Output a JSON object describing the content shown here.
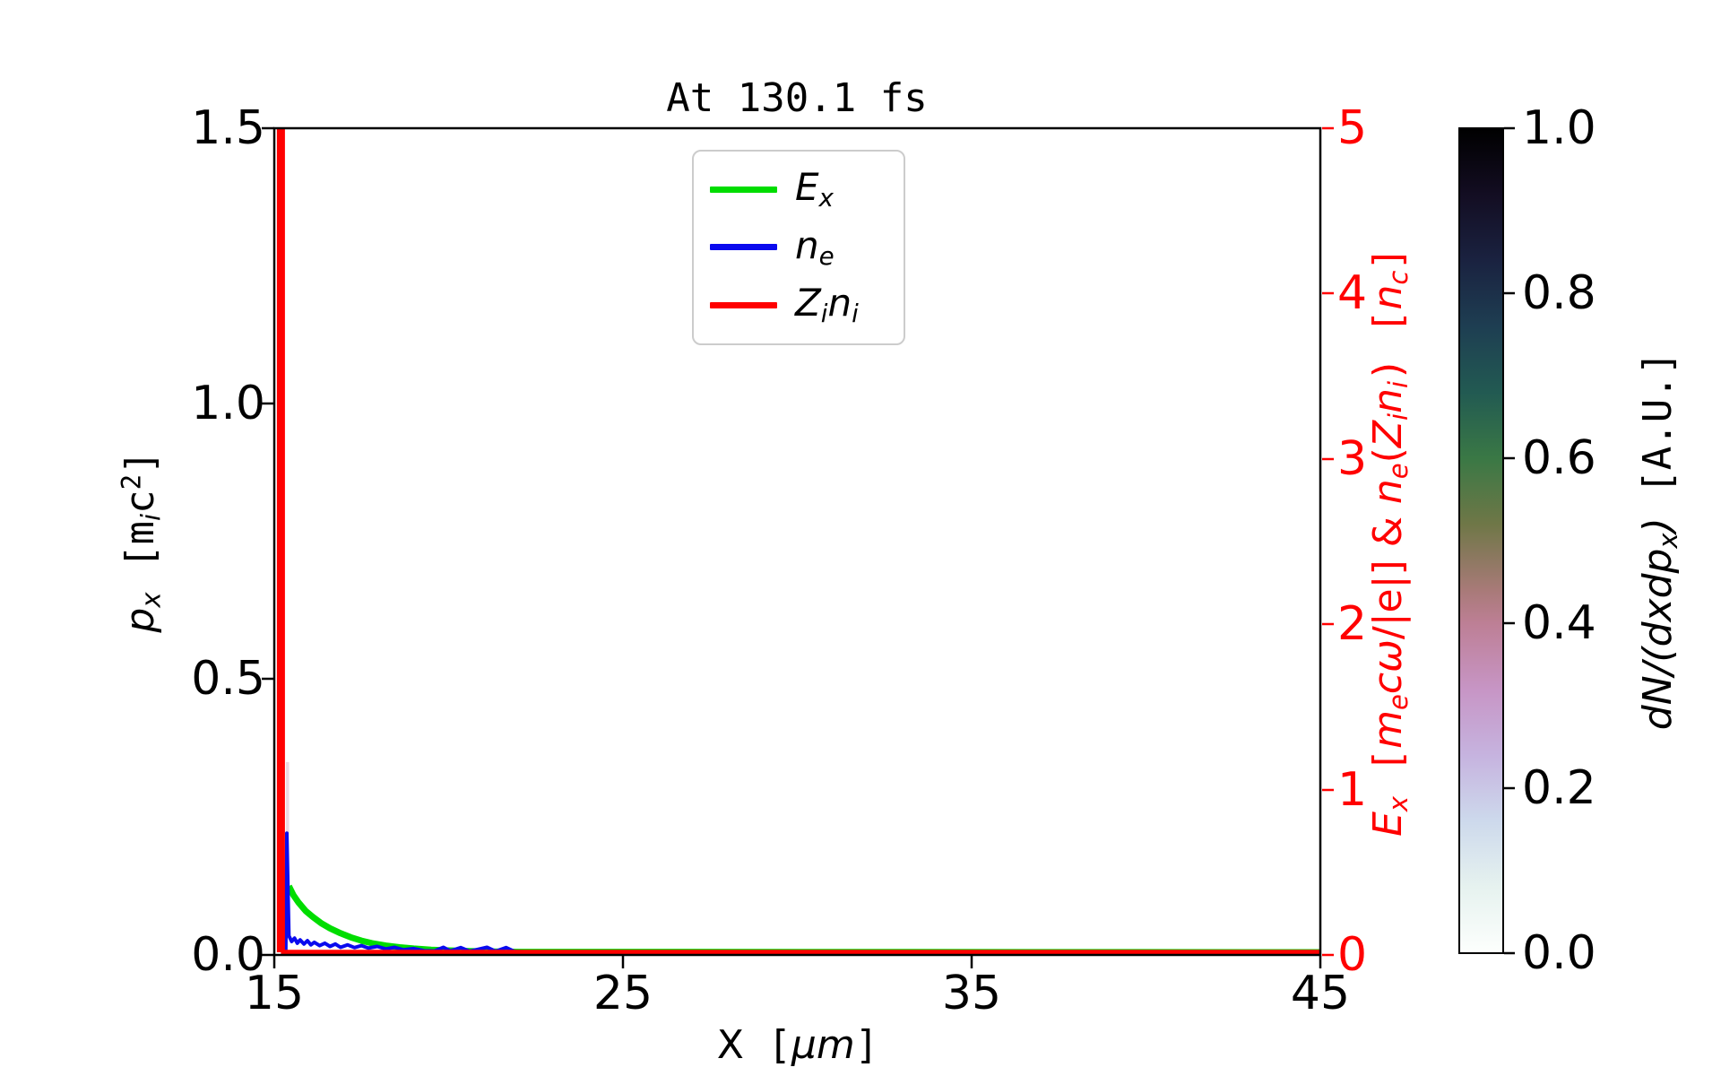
{
  "figure": {
    "title": "At 130.1 fs"
  },
  "axes": {
    "x": {
      "label_x": "X",
      "label_open": " [",
      "label_unit": "μm",
      "label_close": "]",
      "ticks": [
        "15",
        "25",
        "35",
        "45"
      ]
    },
    "y_left": {
      "label_base": "p",
      "label_base_sub": "x",
      "label_open": " [m",
      "label_unit_sub": "i",
      "label_unit_c": "c",
      "label_unit_sup": "2",
      "label_close": "]",
      "ticks": [
        "1.5",
        "1.0",
        "0.5",
        "0.0"
      ]
    },
    "y_right": {
      "color": "#ff0000",
      "ticks": [
        "5",
        "4",
        "3",
        "2",
        "1",
        "0"
      ],
      "label": {
        "s1": "E",
        "s2": "x",
        "s3": " [",
        "s4": "m",
        "s5": "e",
        "s6": "c",
        "s7": "ω",
        "s8": "/|e|] & ",
        "s9": "n",
        "s10": "e",
        "s11": "(",
        "s12": "Z",
        "s13": "i",
        "s14": "n",
        "s15": "i",
        "s16": ") [",
        "s17": "n",
        "s18": "c",
        "s19": "]"
      }
    }
  },
  "legend": {
    "items": [
      {
        "base": "E",
        "sub": "x",
        "base2": "",
        "sub2": "",
        "color": "#00dd00"
      },
      {
        "base": "n",
        "sub": "e",
        "base2": "",
        "sub2": "",
        "color": "#0a0aee"
      },
      {
        "base": "Z",
        "sub": "i",
        "base2": "n",
        "sub2": "i",
        "color": "#ff0000"
      }
    ]
  },
  "colorbar": {
    "ticks": [
      "1.0",
      "0.8",
      "0.6",
      "0.4",
      "0.2",
      "0.0"
    ],
    "label_math": "dN/(dxdp",
    "label_math_sub": "x",
    "label_math_close": ")",
    "label_unit": " [A.U.]"
  },
  "chart_data": {
    "type": "line",
    "title": "At 130.1 fs",
    "x_axis": {
      "label": "X [μm]",
      "range": [
        15,
        45
      ],
      "ticks": [
        15,
        25,
        35,
        45
      ]
    },
    "y_left_axis": {
      "label": "p_x [m_i c^2]",
      "range": [
        0.0,
        1.5
      ],
      "ticks": [
        1.5,
        1.0,
        0.5,
        0.0
      ]
    },
    "y_right_axis": {
      "label": "E_x [m_e cω/|e|] & n_e(Z_i n_i) [n_c]",
      "range": [
        0,
        5
      ],
      "ticks": [
        5,
        4,
        3,
        2,
        1,
        0
      ],
      "color": "#ff0000"
    },
    "legend_entries": [
      "E_x",
      "n_e",
      "Z_i n_i"
    ],
    "grid": false,
    "colorbar": {
      "label": "dN/(dxdp_x) [A.U.]",
      "range": [
        0.0,
        1.0
      ],
      "ticks": [
        1.0,
        0.8,
        0.6,
        0.4,
        0.2,
        0.0
      ],
      "colormap": "cubehelix-reversed (1.0 black, 0.0 white)",
      "stops": [
        [
          1.0,
          "#000000"
        ],
        [
          0.92,
          "#130d22"
        ],
        [
          0.84,
          "#1a2240"
        ],
        [
          0.76,
          "#1e3e52"
        ],
        [
          0.68,
          "#225a52"
        ],
        [
          0.6,
          "#3a7845"
        ],
        [
          0.52,
          "#6f7747"
        ],
        [
          0.44,
          "#a87a78"
        ],
        [
          0.4,
          "#bd7f95"
        ],
        [
          0.32,
          "#c795c5"
        ],
        [
          0.24,
          "#c6b3df"
        ],
        [
          0.16,
          "#cdd9ec"
        ],
        [
          0.08,
          "#e6f2ef"
        ],
        [
          0.0,
          "#fdfffd"
        ]
      ]
    },
    "series": [
      {
        "name": "phase-space-hint",
        "axis": "right",
        "color": "#ecd7e2",
        "width": 3.5,
        "points": [
          [
            15.38,
            0.72
          ],
          [
            15.38,
            1.15
          ]
        ]
      },
      {
        "name": "E_x",
        "axis": "right",
        "color": "#00dd00",
        "width": 7,
        "points": [
          [
            15.42,
            0.4
          ],
          [
            15.55,
            0.345
          ],
          [
            15.7,
            0.3
          ],
          [
            15.9,
            0.25
          ],
          [
            16.1,
            0.215
          ],
          [
            16.35,
            0.175
          ],
          [
            16.6,
            0.145
          ],
          [
            16.9,
            0.115
          ],
          [
            17.2,
            0.09
          ],
          [
            17.5,
            0.07
          ],
          [
            17.8,
            0.055
          ],
          [
            18.2,
            0.04
          ],
          [
            18.6,
            0.03
          ],
          [
            19.0,
            0.022
          ],
          [
            19.5,
            0.015
          ],
          [
            20.0,
            0.011
          ],
          [
            20.6,
            0.007
          ],
          [
            21.3,
            0.004
          ],
          [
            22.0,
            0.002
          ],
          [
            45.0,
            0.0
          ]
        ]
      },
      {
        "name": "n_e",
        "axis": "right",
        "color": "#0a0aee",
        "width": 4,
        "points": [
          [
            15.33,
            0.0
          ],
          [
            15.36,
            0.72
          ],
          [
            15.42,
            0.1
          ],
          [
            15.5,
            0.065
          ],
          [
            15.58,
            0.085
          ],
          [
            15.66,
            0.055
          ],
          [
            15.74,
            0.075
          ],
          [
            15.85,
            0.05
          ],
          [
            15.95,
            0.07
          ],
          [
            16.05,
            0.045
          ],
          [
            16.15,
            0.06
          ],
          [
            16.3,
            0.04
          ],
          [
            16.45,
            0.055
          ],
          [
            16.6,
            0.035
          ],
          [
            16.75,
            0.05
          ],
          [
            16.9,
            0.03
          ],
          [
            17.1,
            0.045
          ],
          [
            17.3,
            0.028
          ],
          [
            17.5,
            0.04
          ],
          [
            17.7,
            0.025
          ],
          [
            17.95,
            0.035
          ],
          [
            18.2,
            0.02
          ],
          [
            18.45,
            0.03
          ],
          [
            18.7,
            0.015
          ],
          [
            19.0,
            0.022
          ],
          [
            19.3,
            0.01
          ],
          [
            19.6,
            0.008
          ],
          [
            19.85,
            0.03
          ],
          [
            20.05,
            0.008
          ],
          [
            20.35,
            0.028
          ],
          [
            20.6,
            0.006
          ],
          [
            21.1,
            0.03
          ],
          [
            21.35,
            0.006
          ],
          [
            21.65,
            0.028
          ],
          [
            21.9,
            0.004
          ],
          [
            22.3,
            0.002
          ],
          [
            45.0,
            0.0
          ]
        ]
      },
      {
        "name": "Z_i-n_i-spike",
        "axis": "right",
        "color": "#ff0000",
        "width": 9,
        "points": [
          [
            15.19,
            5.05
          ],
          [
            15.19,
            0.0
          ]
        ]
      },
      {
        "name": "Z_i-n_i-baseline",
        "axis": "right",
        "color": "#ff0000",
        "width": 5.5,
        "points": [
          [
            15.19,
            0.0
          ],
          [
            45.0,
            0.0
          ]
        ]
      }
    ]
  }
}
